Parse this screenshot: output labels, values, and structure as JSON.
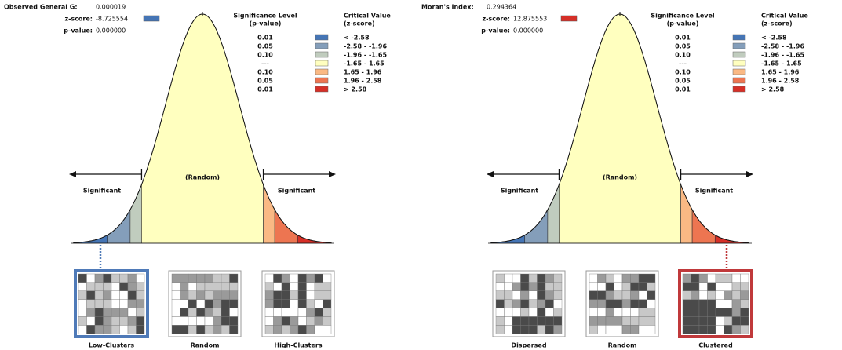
{
  "panels": [
    {
      "stats": [
        {
          "label": "Observed General G:",
          "value": "0.000019"
        },
        {
          "label": "z-score:",
          "value": "-8.725554"
        },
        {
          "label": "p-value:",
          "value": "0.000000"
        }
      ],
      "z_color": "#4575b5",
      "legend": {
        "p_header": [
          "Significance Level",
          "(p-value)"
        ],
        "z_header": [
          "Critical Value",
          "(z-score)"
        ],
        "rows": [
          {
            "p": "0.01",
            "z": "< -2.58",
            "color": "#4575b5"
          },
          {
            "p": "0.05",
            "z": "-2.58 - -1.96",
            "color": "#849eba"
          },
          {
            "p": "0.10",
            "z": "-1.96 - -1.65",
            "color": "#c0ccbe"
          },
          {
            "p": "---",
            "z": "-1.65 - 1.65",
            "color": "#ffffbf"
          },
          {
            "p": "0.10",
            "z": "1.65 - 1.96",
            "color": "#fab984"
          },
          {
            "p": "0.05",
            "z": "1.96 - 2.58",
            "color": "#ed7551"
          },
          {
            "p": "0.01",
            "z": "> 2.58",
            "color": "#d62f27"
          }
        ]
      },
      "center_label": "(Random)",
      "left_label": "Significant",
      "right_label": "Significant",
      "maps": [
        "Low-Clusters",
        "Random",
        "High-Clusters"
      ],
      "highlight": 0,
      "highlight_color": "#4f7ab8"
    },
    {
      "stats": [
        {
          "label": "Moran's Index:",
          "value": "0.294364"
        },
        {
          "label": "z-score:",
          "value": "12.875553"
        },
        {
          "label": "p-value:",
          "value": "0.000000"
        }
      ],
      "z_color": "#d62f27",
      "legend": {
        "p_header": [
          "Significance Level",
          "(p-value)"
        ],
        "z_header": [
          "Critical Value",
          "(z-score)"
        ],
        "rows": [
          {
            "p": "0.01",
            "z": "< -2.58",
            "color": "#4575b5"
          },
          {
            "p": "0.05",
            "z": "-2.58 - -1.96",
            "color": "#849eba"
          },
          {
            "p": "0.10",
            "z": "-1.96 - -1.65",
            "color": "#c0ccbe"
          },
          {
            "p": "---",
            "z": "-1.65 - 1.65",
            "color": "#ffffbf"
          },
          {
            "p": "0.10",
            "z": "1.65 - 1.96",
            "color": "#fab984"
          },
          {
            "p": "0.05",
            "z": "1.96 - 2.58",
            "color": "#ed7551"
          },
          {
            "p": "0.01",
            "z": "> 2.58",
            "color": "#d62f27"
          }
        ]
      },
      "center_label": "(Random)",
      "left_label": "Significant",
      "right_label": "Significant",
      "maps": [
        "Dispersed",
        "Random",
        "Clustered"
      ],
      "highlight": 2,
      "highlight_color": "#c0393b"
    }
  ]
}
